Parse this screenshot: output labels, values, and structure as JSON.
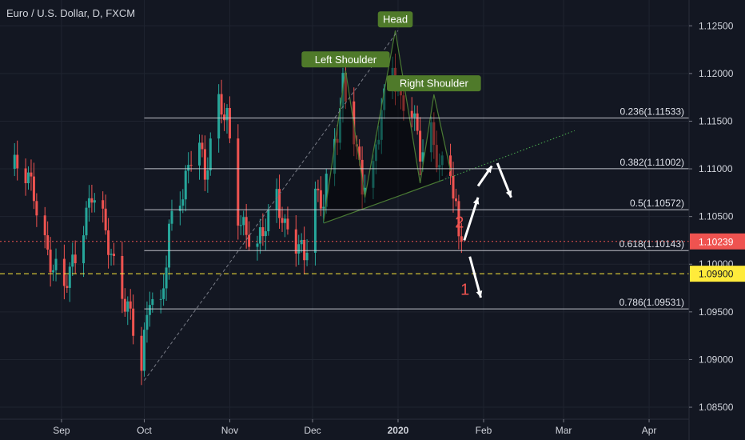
{
  "header": {
    "symbol_title": "Euro / U.S. Dollar, D, FXCM"
  },
  "colors": {
    "background": "#131722",
    "up": "#26a69a",
    "down": "#ef5350",
    "pattern_line": "#4a7a34",
    "label_bg": "#4f7a2a",
    "fib_line": "#d1d4dc",
    "price_line": "#ef5350",
    "support_line": "#ffeb3b",
    "trend_dash": "#787b86",
    "trend_dot": "#4caf50",
    "arrow": "#ffffff",
    "step_number": "#ef5350"
  },
  "chart_data": {
    "type": "candlestick",
    "symbol": "EUR/USD",
    "interval": "D",
    "source": "FXCM",
    "y_axis": {
      "range": [
        1.0845,
        1.1267
      ],
      "ticks": [
        "1.12500",
        "1.12000",
        "1.11500",
        "1.11000",
        "1.10500",
        "1.10000",
        "1.09500",
        "1.09000",
        "1.08500"
      ],
      "tick_values": [
        1.125,
        1.12,
        1.115,
        1.11,
        1.105,
        1.1,
        1.095,
        1.09,
        1.085
      ]
    },
    "x_axis": {
      "labels": [
        {
          "text": "Sep",
          "date": "2019-09-01"
        },
        {
          "text": "Oct",
          "date": "2019-10-01"
        },
        {
          "text": "Nov",
          "date": "2019-11-01"
        },
        {
          "text": "Dec",
          "date": "2019-12-01"
        },
        {
          "text": "2020",
          "date": "2020-01-01"
        },
        {
          "text": "Feb",
          "date": "2020-02-01"
        },
        {
          "text": "Mar",
          "date": "2020-03-01"
        },
        {
          "text": "Apr",
          "date": "2020-04-01"
        }
      ]
    },
    "anchor_points": [
      [
        "2019-08-15",
        1.11
      ],
      [
        "2019-08-23",
        1.108
      ],
      [
        "2019-08-30",
        1.099
      ],
      [
        "2019-09-03",
        1.097
      ],
      [
        "2019-09-09",
        1.104
      ],
      [
        "2019-09-13",
        1.107
      ],
      [
        "2019-09-18",
        1.103
      ],
      [
        "2019-09-23",
        1.099
      ],
      [
        "2019-09-27",
        1.094
      ],
      [
        "2019-10-01",
        1.0885
      ],
      [
        "2019-10-04",
        1.0975
      ],
      [
        "2019-10-08",
        1.096
      ],
      [
        "2019-10-11",
        1.103
      ],
      [
        "2019-10-16",
        1.107
      ],
      [
        "2019-10-21",
        1.116
      ],
      [
        "2019-10-24",
        1.109
      ],
      [
        "2019-10-29",
        1.116
      ],
      [
        "2019-11-01",
        1.116
      ],
      [
        "2019-11-05",
        1.106
      ],
      [
        "2019-11-08",
        1.1025
      ],
      [
        "2019-11-12",
        1.101
      ],
      [
        "2019-11-15",
        1.105
      ],
      [
        "2019-11-19",
        1.108
      ],
      [
        "2019-11-22",
        1.103
      ],
      [
        "2019-11-26",
        1.1015
      ],
      [
        "2019-11-29",
        1.1015
      ],
      [
        "2019-12-03",
        1.108
      ],
      [
        "2019-12-06",
        1.106
      ],
      [
        "2019-12-11",
        1.1135
      ],
      [
        "2019-12-13",
        1.1195
      ],
      [
        "2019-12-17",
        1.1145
      ],
      [
        "2019-12-20",
        1.1075
      ],
      [
        "2019-12-24",
        1.109
      ],
      [
        "2019-12-27",
        1.117
      ],
      [
        "2019-12-31",
        1.1215
      ],
      [
        "2020-01-03",
        1.116
      ],
      [
        "2020-01-07",
        1.1155
      ],
      [
        "2020-01-10",
        1.1125
      ],
      [
        "2020-01-14",
        1.1145
      ],
      [
        "2020-01-17",
        1.1095
      ],
      [
        "2020-01-21",
        1.109
      ],
      [
        "2020-01-23",
        1.106
      ],
      [
        "2020-01-24",
        1.1028
      ]
    ],
    "last_price": 1.10239,
    "fibonacci": [
      {
        "ratio": "0.236",
        "level": 1.11533,
        "label": "0.236(1.11533)"
      },
      {
        "ratio": "0.382",
        "level": 1.11002,
        "label": "0.382(1.11002)"
      },
      {
        "ratio": "0.5",
        "level": 1.10572,
        "label": "0.5(1.10572)"
      },
      {
        "ratio": "0.618",
        "level": 1.10143,
        "label": "0.618(1.10143)"
      },
      {
        "ratio": "0.786",
        "level": 1.09531,
        "label": "0.786(1.09531)"
      }
    ],
    "fib_start_date": "2019-10-01",
    "horizontal_levels": [
      {
        "value": 1.099,
        "label": "1.09900",
        "style": "dashed"
      },
      {
        "value": 1.10239,
        "label": "1.10239",
        "style": "dotted"
      }
    ],
    "pattern": {
      "name": "head-and-shoulders",
      "labels": [
        {
          "text": "Left Shoulder",
          "date": "2019-12-13",
          "price": 1.1203
        },
        {
          "text": "Head",
          "date": "2019-12-31",
          "price": 1.1245
        },
        {
          "text": "Right Shoulder",
          "date": "2020-01-14",
          "price": 1.1178
        }
      ],
      "outline": [
        [
          "2019-12-05",
          1.1045
        ],
        [
          "2019-12-13",
          1.1203
        ],
        [
          "2019-12-20",
          1.107
        ],
        [
          "2019-12-31",
          1.1245
        ],
        [
          "2020-01-09",
          1.1085
        ],
        [
          "2020-01-14",
          1.1178
        ],
        [
          "2020-01-20",
          1.1098
        ]
      ],
      "neckline": [
        [
          "2019-12-05",
          1.1043
        ],
        [
          "2020-01-17",
          1.1088
        ]
      ],
      "neckline_extension": [
        [
          "2020-01-17",
          1.1088
        ],
        [
          "2020-03-05",
          1.114
        ]
      ]
    },
    "trend_line": [
      [
        "2019-10-01",
        1.0878
      ],
      [
        "2020-01-01",
        1.1245
      ]
    ],
    "scenarios": [
      {
        "step": "2",
        "path": [
          [
            "2020-01-25",
            1.1025
          ],
          [
            "2020-01-30",
            1.107
          ],
          [
            "2020-02-04",
            1.1103
          ]
        ],
        "then": [
          [
            "2020-02-06",
            1.1106
          ],
          [
            "2020-02-11",
            1.107
          ]
        ]
      },
      {
        "step": "1",
        "path": [
          [
            "2020-01-27",
            1.1008
          ],
          [
            "2020-01-31",
            1.0965
          ]
        ]
      }
    ]
  }
}
